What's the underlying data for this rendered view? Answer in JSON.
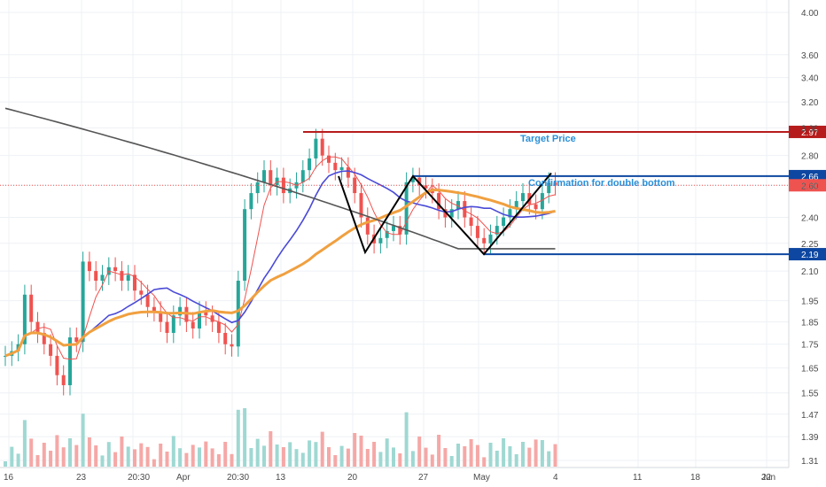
{
  "chart_data": {
    "type": "candlestick",
    "price_axis": {
      "scale": "log",
      "ticks": [
        "4.00",
        "3.60",
        "3.40",
        "3.20",
        "3.00",
        "2.80",
        "2.60",
        "2.40",
        "2.25",
        "2.10",
        "1.95",
        "1.85",
        "1.75",
        "1.65",
        "1.55",
        "1.47",
        "1.39",
        "1.31"
      ]
    },
    "time_axis": {
      "ticks": [
        "16",
        "23",
        "20:30",
        "Apr",
        "20:30",
        "13",
        "20",
        "27",
        "May",
        "4",
        "11",
        "18",
        "22",
        "Jun"
      ]
    },
    "levels": [
      {
        "label": "2.97",
        "name": "target",
        "value": 2.97,
        "color": "#b71c1c"
      },
      {
        "label": "2.66",
        "name": "confirmation",
        "value": 2.66,
        "color": "#0d47a1"
      },
      {
        "label": "2.60",
        "name": "last-price",
        "value": 2.6,
        "color": "#ef5350"
      },
      {
        "label": "2.19",
        "name": "support",
        "value": 2.19,
        "color": "#0d47a1"
      }
    ],
    "annotations": [
      {
        "text": "Target Price"
      },
      {
        "text": "Confirmation for double bottom"
      }
    ],
    "pattern_points": [
      [
        2.2,
        2.2
      ],
      [
        2.66,
        2.66
      ],
      [
        2.19,
        2.68
      ]
    ],
    "candles": [
      1.7,
      1.72,
      1.75,
      1.98,
      1.85,
      1.8,
      1.75,
      1.7,
      1.62,
      1.58,
      1.78,
      1.76,
      2.15,
      2.1,
      2.05,
      2.08,
      2.12,
      2.1,
      2.05,
      2.08,
      2.0,
      1.98,
      1.92,
      1.9,
      1.85,
      1.8,
      1.88,
      1.92,
      1.85,
      1.82,
      1.9,
      1.88,
      1.85,
      1.8,
      1.75,
      1.74,
      2.05,
      2.45,
      2.55,
      2.62,
      2.7,
      2.6,
      2.65,
      2.55,
      2.58,
      2.62,
      2.7,
      2.78,
      2.92,
      2.8,
      2.75,
      2.7,
      2.72,
      2.65,
      2.55,
      2.4,
      2.3,
      2.25,
      2.28,
      2.32,
      2.35,
      2.3,
      2.62,
      2.65,
      2.6,
      2.58,
      2.55,
      2.45,
      2.4,
      2.45,
      2.5,
      2.4,
      2.35,
      2.28,
      2.25,
      2.3,
      2.35,
      2.4,
      2.45,
      2.5,
      2.55,
      2.48,
      2.45,
      2.55,
      2.62,
      2.6
    ],
    "colors": {
      "up": "#26a69a",
      "down": "#ef5350",
      "ma_fast": "#ef5350",
      "ma_mid": "#4a4ad8",
      "ma_slow": "#f0a040",
      "ma_long": "#555555"
    }
  }
}
